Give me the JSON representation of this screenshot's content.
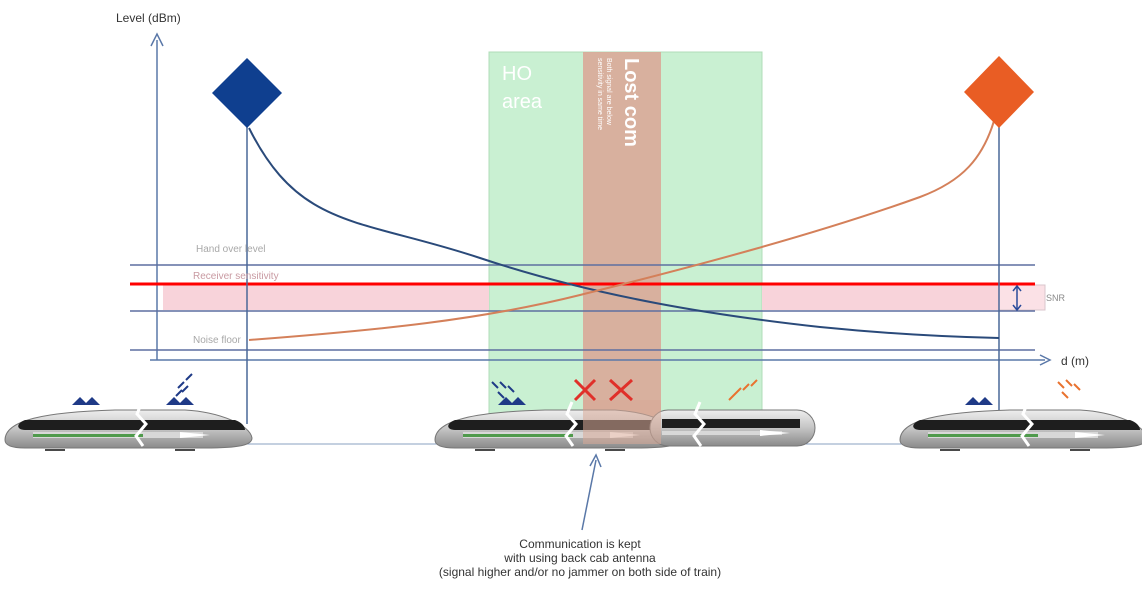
{
  "axes": {
    "y_label": "Level (dBm)",
    "x_label": "d (m)"
  },
  "levels": {
    "handover": "Hand over level",
    "sensitivity": "Receiver sensitivity",
    "noise": "Noise floor",
    "snr": "SNR"
  },
  "zones": {
    "ho_area": {
      "line1": "HO",
      "line2": "area"
    },
    "lost_com": {
      "title": "Lost com",
      "sub1": "Both signal are below",
      "sub2": "sensitivity in same time"
    }
  },
  "caption": {
    "line1": "Communication is kept",
    "line2": "with using back cab antenna",
    "line3": "(signal higher and/or no jammer on both side of train)"
  },
  "colors": {
    "left_base_station": "#0f3f8f",
    "right_base_station": "#e95d24",
    "left_curve": "#2a4a7a",
    "right_curve": "#d4805a",
    "ho_area_fill": "#c9f0d2",
    "lost_com_fill": "#d9a998",
    "sensitivity_line": "#ff0000",
    "snr_band": "#f8d3da",
    "axis": "#5a78a8"
  }
}
